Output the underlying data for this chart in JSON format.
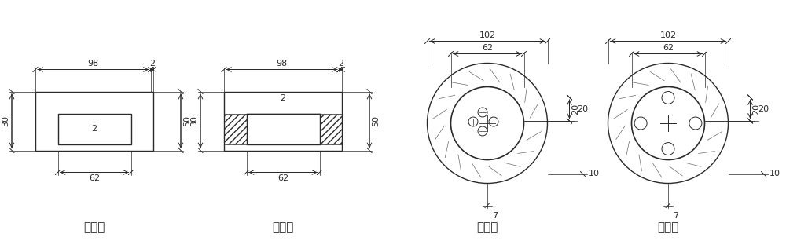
{
  "bg_color": "#ffffff",
  "line_color": "#2a2a2a",
  "views": [
    "主视图",
    "侧视图",
    "俯视图",
    "仰视图"
  ],
  "font_size_label": 11,
  "font_size_dim": 8,
  "font_family": "SimSun",
  "fig_w": 10.0,
  "fig_h": 3.12,
  "dpi": 100
}
